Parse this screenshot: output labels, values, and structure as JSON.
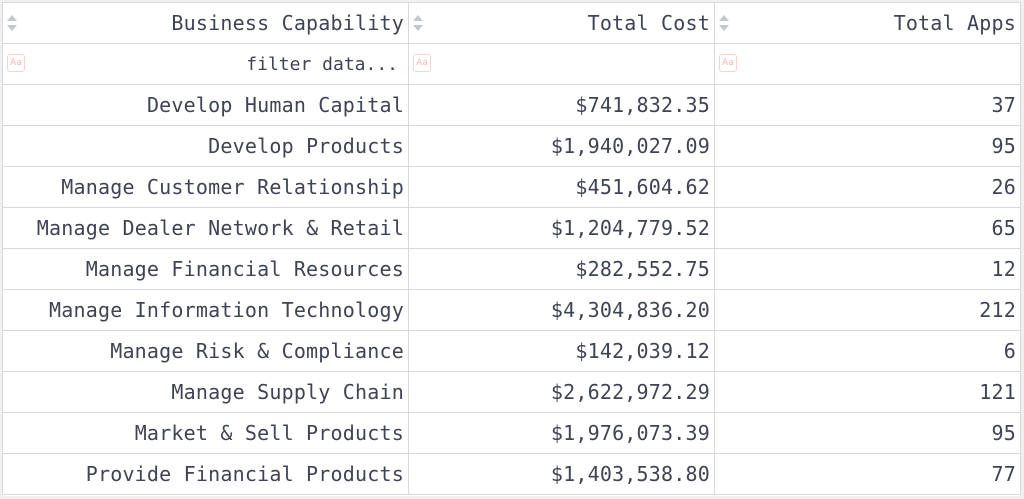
{
  "columns": [
    {
      "label": "Business Capability",
      "filter_placeholder": "filter data..."
    },
    {
      "label": "Total Cost",
      "filter_placeholder": ""
    },
    {
      "label": "Total Apps",
      "filter_placeholder": ""
    }
  ],
  "rows": [
    [
      "Develop Human Capital",
      "$741,832.35",
      "37"
    ],
    [
      "Develop Products",
      "$1,940,027.09",
      "95"
    ],
    [
      "Manage Customer Relationship",
      "$451,604.62",
      "26"
    ],
    [
      "Manage Dealer Network & Retail",
      "$1,204,779.52",
      "65"
    ],
    [
      "Manage Financial Resources",
      "$282,552.75",
      "12"
    ],
    [
      "Manage Information Technology",
      "$4,304,836.20",
      "212"
    ],
    [
      "Manage Risk & Compliance",
      "$142,039.12",
      "6"
    ],
    [
      "Manage Supply Chain",
      "$2,622,972.29",
      "121"
    ],
    [
      "Market & Sell Products",
      "$1,976,073.39",
      "95"
    ],
    [
      "Provide Financial Products",
      "$1,403,538.80",
      "77"
    ]
  ],
  "icons": {
    "sort": "sort-icon",
    "case_toggle": "match-case-icon",
    "case_toggle_text": "Aa"
  },
  "colors": {
    "text": "#3f4454",
    "border": "#d9d9d9",
    "case_icon": "#f3b9b9"
  }
}
